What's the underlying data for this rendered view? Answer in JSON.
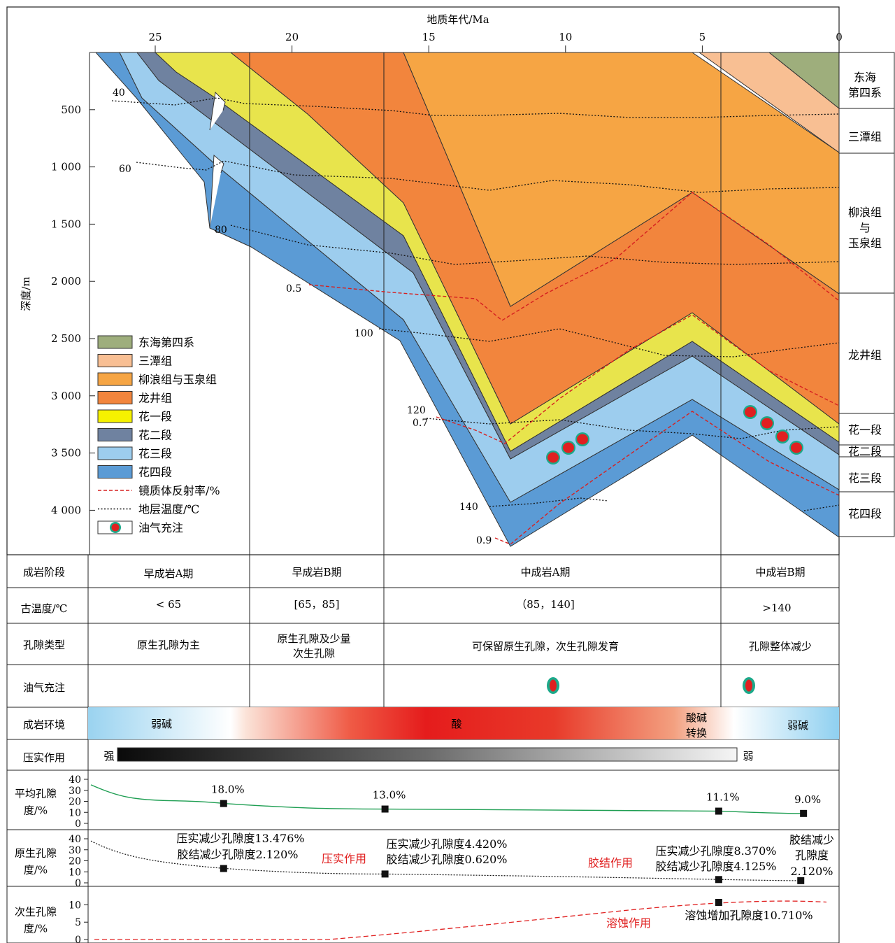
{
  "chart_data": {
    "type": "burial-history-diagenesis",
    "x_axis": {
      "label": "地质年代/Ma",
      "ticks": [
        25,
        20,
        15,
        10,
        5,
        0
      ],
      "range": [
        27.5,
        0
      ]
    },
    "y_axis": {
      "label": "深度/m",
      "ticks": [
        {
          "v": 500,
          "t": "500"
        },
        {
          "v": 1000,
          "t": "1 000"
        },
        {
          "v": 1500,
          "t": "1 500"
        },
        {
          "v": 2000,
          "t": "2 000"
        },
        {
          "v": 2500,
          "t": "2 500"
        },
        {
          "v": 3000,
          "t": "3 000"
        },
        {
          "v": 3500,
          "t": "3 500"
        },
        {
          "v": 4000,
          "t": "4 000"
        }
      ],
      "range": [
        0,
        4300
      ]
    },
    "layers": [
      {
        "name": "东海第四系",
        "color": "#9eae7c"
      },
      {
        "name": "三潭组",
        "color": "#f8bf93"
      },
      {
        "name": "柳浪组与玉泉组",
        "color": "#f6a544"
      },
      {
        "name": "龙井组",
        "color": "#f2853d"
      },
      {
        "name": "花一段",
        "color": "#e8e44c"
      },
      {
        "name": "花二段",
        "color": "#6f82a0"
      },
      {
        "name": "花三段",
        "color": "#9dcdee"
      },
      {
        "name": "花四段",
        "color": "#5b9bd5"
      }
    ],
    "legend": [
      {
        "label": "东海第四系",
        "kind": "fill",
        "color": "#9eae7c"
      },
      {
        "label": "三潭组",
        "kind": "fill",
        "color": "#f8bf93"
      },
      {
        "label": "柳浪组与玉泉组",
        "kind": "fill",
        "color": "#f6a544"
      },
      {
        "label": "龙井组",
        "kind": "fill",
        "color": "#f2853d"
      },
      {
        "label": "花一段",
        "kind": "fill",
        "color": "#f6f200"
      },
      {
        "label": "花二段",
        "kind": "fill",
        "color": "#6f82a0"
      },
      {
        "label": "花三段",
        "kind": "fill",
        "color": "#9dcdee"
      },
      {
        "label": "花四段",
        "kind": "fill",
        "color": "#5b9bd5"
      },
      {
        "label": "镜质体反射率/%",
        "kind": "redline",
        "color": "#d62020"
      },
      {
        "label": "地层温度/℃",
        "kind": "blackline",
        "color": "#111111"
      },
      {
        "label": "油气充注",
        "kind": "charge",
        "color": "#e02020"
      }
    ],
    "strata_labels": [
      "东海第四系",
      "三潭组",
      "柳浪组与玉泉组",
      "龙井组",
      "花一段",
      "花二段",
      "花三段",
      "花四段"
    ],
    "isotherm_labels": [
      "40",
      "60",
      "80",
      "100",
      "120",
      "140"
    ],
    "ro_labels": [
      "0.5",
      "0.7",
      "0.9"
    ],
    "diagenesis_table": {
      "headers": [
        "成岩阶段",
        "古温度/℃",
        "孔隙类型",
        "油气充注"
      ],
      "stages": [
        "早成岩A期",
        "早成岩B期",
        "中成岩A期",
        "中成岩B期"
      ],
      "temperature": [
        "< 65",
        "[65，85]",
        "（85，140]",
        ">140"
      ],
      "pore_type": [
        "原生孔隙为主",
        "原生孔隙及少量 次生孔隙",
        "可保留原生孔隙，次生孔隙发育",
        "孔隙整体减少"
      ]
    },
    "environment": {
      "label": "成岩环境",
      "items": [
        "弱碱",
        "酸",
        "酸碱 转换",
        "弱碱"
      ]
    },
    "compaction": {
      "label": "压实作用",
      "strong": "强",
      "weak": "弱"
    },
    "average_porosity": {
      "label": "平均孔隙度/%",
      "ticks": [
        0,
        10,
        20,
        30,
        40
      ],
      "points": [
        {
          "age": 22.5,
          "value": 18.0,
          "label": "18.0%"
        },
        {
          "age": 16.6,
          "value": 13.0,
          "label": "13.0%"
        },
        {
          "age": 4.4,
          "value": 11.1,
          "label": "11.1%"
        },
        {
          "age": 1.3,
          "value": 9.0,
          "label": "9.0%"
        }
      ]
    },
    "primary_porosity": {
      "label": "原生孔隙度/%",
      "ticks": [
        0,
        10,
        20,
        30,
        40
      ],
      "points": [
        {
          "age": 22.5,
          "value": 13
        },
        {
          "age": 16.6,
          "value": 8
        },
        {
          "age": 4.4,
          "value": 3
        },
        {
          "age": 1.4,
          "value": 2
        }
      ],
      "annotations": [
        "压实减少孔隙度13.476%",
        "胶结减少孔隙度2.120%",
        "压实减少孔隙度4.420%",
        "胶结减少孔隙度0.620%",
        "压实减少孔隙度8.370%",
        "胶结减少孔隙度4.125%",
        "胶结减少",
        "孔隙度",
        "2.120%"
      ],
      "process_labels": [
        "压实作用",
        "胶结作用"
      ]
    },
    "secondary_porosity": {
      "label": "次生孔隙度/%",
      "ticks": [
        0,
        5,
        10
      ],
      "points": [
        {
          "age": 4.4,
          "value": 10.7
        }
      ],
      "annotation": "溶蚀增加孔隙度10.710%",
      "process_label": "溶蚀作用"
    }
  }
}
